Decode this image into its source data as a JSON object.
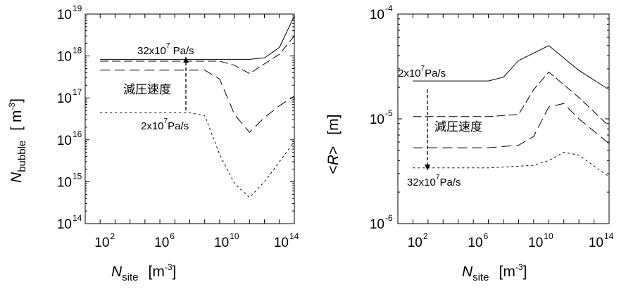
{
  "chart_data": [
    {
      "type": "line",
      "title": "",
      "xscale": "log",
      "yscale": "log",
      "xlim": [
        1.0,
        100000000000000.0
      ],
      "ylim": [
        100000000000000.0,
        1e+19
      ],
      "xticks": [
        {
          "base": "10",
          "exp": "2",
          "value": 100.0
        },
        {
          "base": "10",
          "exp": "6",
          "value": 1000000.0
        },
        {
          "base": "10",
          "exp": "10",
          "value": 10000000000.0
        },
        {
          "base": "10",
          "exp": "14",
          "value": 100000000000000.0
        }
      ],
      "yticks": [
        {
          "base": "10",
          "exp": "14",
          "value": 100000000000000.0
        },
        {
          "base": "10",
          "exp": "15",
          "value": 1000000000000000.0
        },
        {
          "base": "10",
          "exp": "16",
          "value": 1e+16
        },
        {
          "base": "10",
          "exp": "17",
          "value": 1e+17
        },
        {
          "base": "10",
          "exp": "18",
          "value": 1e+18
        },
        {
          "base": "10",
          "exp": "19",
          "value": 1e+19
        }
      ],
      "xlabel": {
        "main": "N",
        "sub": "site",
        "unit_open": "[m",
        "unit_exp": "-3",
        "unit_close": "]"
      },
      "ylabel": {
        "main": "N",
        "sub": "bubble",
        "unit_open": "[ m",
        "unit_exp": "-3",
        "unit_close": "]"
      },
      "series": [
        {
          "style": "solid",
          "points": [
            [
              10.0,
              8.3e+17
            ],
            [
              1000000.0,
              8.3e+17
            ],
            [
              100000000000.0,
              8.3e+17
            ],
            [
              1000000000000.0,
              9e+17
            ],
            [
              10000000000000.0,
              1.6e+18
            ],
            [
              100000000000000.0,
              9e+18
            ]
          ]
        },
        {
          "style": "dashed",
          "points": [
            [
              10.0,
              7.5e+17
            ],
            [
              1000000.0,
              7.5e+17
            ],
            [
              1000000000.0,
              7.5e+17
            ],
            [
              10000000000.0,
              6e+17
            ],
            [
              100000000000.0,
              3.8e+17
            ],
            [
              1000000000000.0,
              6.5e+17
            ],
            [
              10000000000000.0,
              1.1e+18
            ],
            [
              100000000000000.0,
              3e+18
            ]
          ]
        },
        {
          "style": "dash-long",
          "points": [
            [
              10.0,
              4.6e+17
            ],
            [
              1000000.0,
              4.6e+17
            ],
            [
              100000000.0,
              4.6e+17
            ],
            [
              1000000000.0,
              2.8e+17
            ],
            [
              10000000000.0,
              4e+16
            ],
            [
              100000000000.0,
              1.5e+16
            ],
            [
              1000000000000.0,
              3.4e+16
            ],
            [
              10000000000000.0,
              6.5e+16
            ],
            [
              100000000000000.0,
              1.1e+17
            ]
          ]
        },
        {
          "style": "dotted",
          "points": [
            [
              10.0,
              4.4e+16
            ],
            [
              1000000.0,
              4.4e+16
            ],
            [
              10000000.0,
              4.4e+16
            ],
            [
              100000000.0,
              3.8e+16
            ],
            [
              1000000000.0,
              4500000000000000.0
            ],
            [
              10000000000.0,
              900000000000000.0
            ],
            [
              100000000000.0,
              420000000000000.0
            ],
            [
              1000000000000.0,
              1000000000000000.0
            ],
            [
              10000000000000.0,
              3000000000000000.0
            ],
            [
              100000000000000.0,
              9000000000000000.0
            ]
          ]
        }
      ],
      "annotations": [
        {
          "base": "32x10",
          "exp": "7",
          "unit": " Pa/s"
        },
        {
          "base": "2x10",
          "exp": "7",
          "unit": "Pa/s"
        },
        {
          "text": "減圧速度"
        }
      ]
    },
    {
      "type": "line",
      "title": "",
      "xscale": "log",
      "yscale": "log",
      "xlim": [
        1.0,
        100000000000000.0
      ],
      "ylim": [
        1e-06,
        0.0001
      ],
      "xticks": [
        {
          "base": "10",
          "exp": "2",
          "value": 100.0
        },
        {
          "base": "10",
          "exp": "6",
          "value": 1000000.0
        },
        {
          "base": "10",
          "exp": "10",
          "value": 10000000000.0
        },
        {
          "base": "10",
          "exp": "14",
          "value": 100000000000000.0
        }
      ],
      "yticks": [
        {
          "base": "10",
          "exp": "-6",
          "value": 1e-06
        },
        {
          "base": "10",
          "exp": "-5",
          "value": 1e-05
        },
        {
          "base": "10",
          "exp": "-4",
          "value": 0.0001
        }
      ],
      "xlabel": {
        "main": "N",
        "sub": "site",
        "unit_open": "[m",
        "unit_exp": "-3",
        "unit_close": "]"
      },
      "ylabel": {
        "open": "<",
        "main": "R",
        "close": ">",
        "unit": "[m]"
      },
      "series": [
        {
          "style": "solid",
          "points": [
            [
              10.0,
              2.3e-05
            ],
            [
              1000000.0,
              2.3e-05
            ],
            [
              10000000.0,
              2.5e-05
            ],
            [
              100000000.0,
              3.6e-05
            ],
            [
              10000000000.0,
              5e-05
            ],
            [
              1000000000000.0,
              2.9e-05
            ],
            [
              100000000000000.0,
              1.9e-05
            ]
          ]
        },
        {
          "style": "dashed",
          "points": [
            [
              10.0,
              1.05e-05
            ],
            [
              1000000.0,
              1.05e-05
            ],
            [
              100000000.0,
              1.1e-05
            ],
            [
              1000000000.0,
              1.9e-05
            ],
            [
              10000000000.0,
              2.8e-05
            ],
            [
              1000000000000.0,
              1.6e-05
            ],
            [
              100000000000000.0,
              8.5e-06
            ]
          ]
        },
        {
          "style": "dash-long",
          "points": [
            [
              10.0,
              5.3e-06
            ],
            [
              1000000.0,
              5.3e-06
            ],
            [
              100000000.0,
              5.6e-06
            ],
            [
              1000000000.0,
              6.8e-06
            ],
            [
              10000000000.0,
              1.3e-05
            ],
            [
              100000000000.0,
              1.4e-05
            ],
            [
              1000000000000.0,
              1e-05
            ],
            [
              100000000000000.0,
              5.8e-06
            ]
          ]
        },
        {
          "style": "dotted",
          "points": [
            [
              10.0,
              3.4e-06
            ],
            [
              1000000.0,
              3.4e-06
            ],
            [
              1000000000.0,
              3.6e-06
            ],
            [
              10000000000.0,
              4e-06
            ],
            [
              100000000000.0,
              4.8e-06
            ],
            [
              1000000000000.0,
              4.5e-06
            ],
            [
              100000000000000.0,
              2.8e-06
            ]
          ]
        }
      ],
      "annotations": [
        {
          "base": "2x10",
          "exp": "7",
          "unit": "Pa/s"
        },
        {
          "text": "減圧速度"
        },
        {
          "base": "32x10",
          "exp": "7",
          "unit": "Pa/s"
        }
      ]
    }
  ]
}
